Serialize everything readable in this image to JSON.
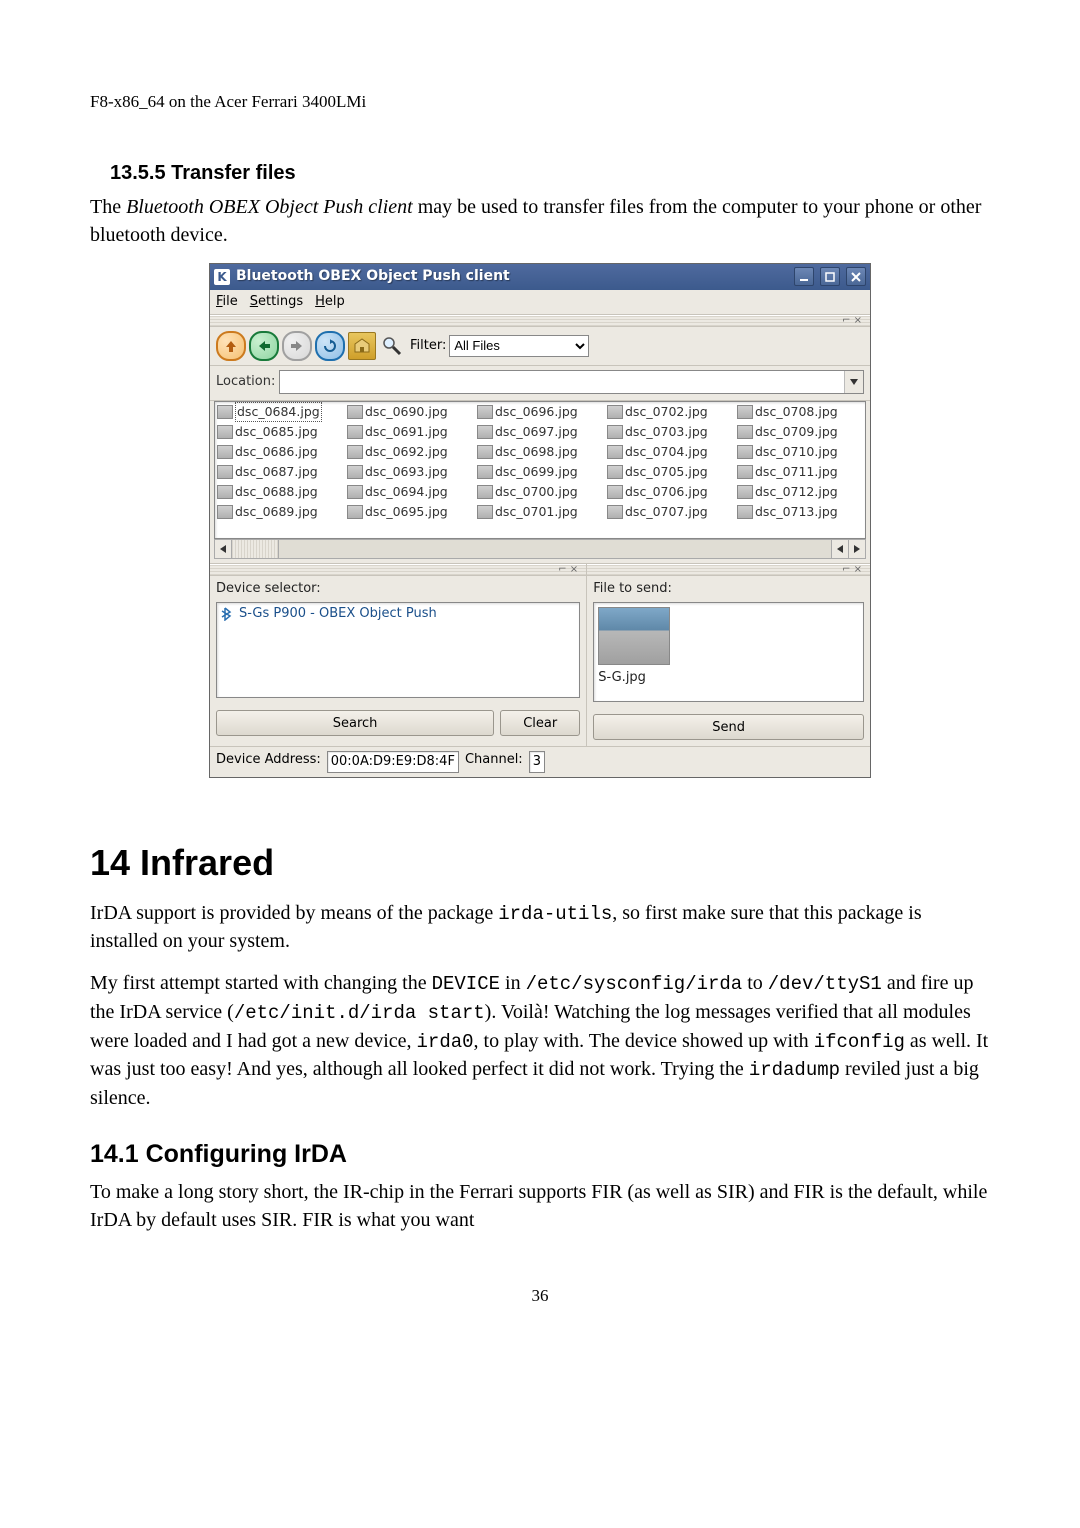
{
  "doc": {
    "header": "F8-x86_64 on the Acer Ferrari 3400LMi",
    "subsection_num": "13.5.5 Transfer files",
    "para1_part1": "The ",
    "para1_italic": "Bluetooth OBEX Object Push client",
    "para1_part2": " may be used to transfer files from the computer to your phone or other bluetooth device.",
    "section14_title": "14 Infrared",
    "para14_1_a": "IrDA support is provided by means of the package ",
    "para14_1_code1": "irda-utils",
    "para14_1_b": ", so first make sure that this package is installed on your system.",
    "para14_2_a": "My first attempt started with changing the ",
    "para14_2_code1": "DEVICE",
    "para14_2_b": " in ",
    "para14_2_code2": "/etc/sysconfig/irda",
    "para14_2_c": " to ",
    "para14_2_code3": "/dev/ttyS1",
    "para14_2_d": " and fire up the IrDA service (",
    "para14_2_code4": "/etc/init.d/irda start",
    "para14_2_e": "). Voilà! Watching the log messages verified that all modules were loaded and I had got a new device, ",
    "para14_2_code5": "irda0",
    "para14_2_f": ", to play with. The device showed up with ",
    "para14_2_code6": "ifconfig",
    "para14_2_g": " as well. It was just too easy! And yes, although all looked perfect it did not work. Trying the ",
    "para14_2_code7": "irdadump",
    "para14_2_h": " reviled just a big silence.",
    "subsection14_1_title": "14.1 Configuring IrDA",
    "para14_3": "To make a long story short, the IR-chip in the Ferrari supports FIR (as well as SIR) and FIR is the default, while IrDA by default uses SIR. FIR is what you want",
    "page_number": "36"
  },
  "app": {
    "titlebar": {
      "icon_letter": "K",
      "title": "Bluetooth OBEX Object Push client"
    },
    "menubar": {
      "file": "File",
      "settings": "Settings",
      "help": "Help"
    },
    "toolbar": {
      "filter_label": "Filter:",
      "filter_value": "All Files"
    },
    "location": {
      "label": "Location:",
      "value": ""
    },
    "files": [
      "dsc_0684.jpg",
      "dsc_0690.jpg",
      "dsc_0696.jpg",
      "dsc_0702.jpg",
      "dsc_0708.jpg",
      "dsc_0685.jpg",
      "dsc_0691.jpg",
      "dsc_0697.jpg",
      "dsc_0703.jpg",
      "dsc_0709.jpg",
      "dsc_0686.jpg",
      "dsc_0692.jpg",
      "dsc_0698.jpg",
      "dsc_0704.jpg",
      "dsc_0710.jpg",
      "dsc_0687.jpg",
      "dsc_0693.jpg",
      "dsc_0699.jpg",
      "dsc_0705.jpg",
      "dsc_0711.jpg",
      "dsc_0688.jpg",
      "dsc_0694.jpg",
      "dsc_0700.jpg",
      "dsc_0706.jpg",
      "dsc_0712.jpg",
      "dsc_0689.jpg",
      "dsc_0695.jpg",
      "dsc_0701.jpg",
      "dsc_0707.jpg",
      "dsc_0713.jpg"
    ],
    "panels": {
      "device_label": "Device selector:",
      "device_item": "S-Gs P900 - OBEX Object Push",
      "file_label": "File to send:",
      "file_item": "S-G.jpg",
      "search": "Search",
      "clear": "Clear",
      "send": "Send"
    },
    "statusbar": {
      "addr_label": "Device Address:",
      "addr_value": "00:0A:D9:E9:D8:4F",
      "chan_label": "Channel:",
      "chan_value": "3"
    },
    "selected_index": 0
  }
}
